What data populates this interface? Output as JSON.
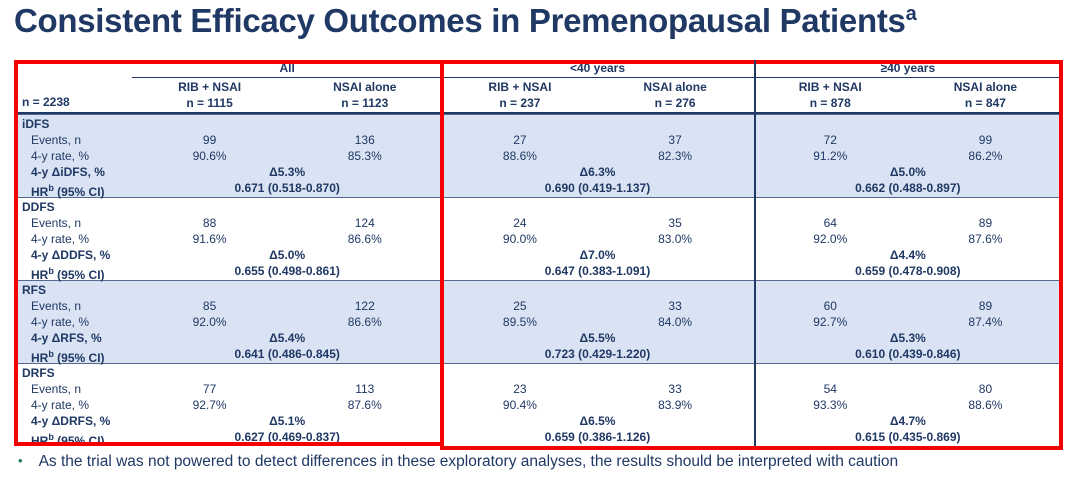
{
  "title": {
    "text": "Consistent Efficacy Outcomes in Premenopausal Patients",
    "superscript": "a"
  },
  "colors": {
    "navy": "#1f3864",
    "row_shade": "#dae3f3",
    "highlight_red": "#f40000",
    "bullet_green": "#1e7a5a"
  },
  "table": {
    "n_label": "n = 2238",
    "groups": [
      {
        "label": "All",
        "columns": [
          {
            "arm": "RIB + NSAI",
            "n": "n = 1115"
          },
          {
            "arm": "NSAI alone",
            "n": "n = 1123"
          }
        ]
      },
      {
        "label": "<40 years",
        "columns": [
          {
            "arm": "RIB + NSAI",
            "n": "n = 237"
          },
          {
            "arm": "NSAI alone",
            "n": "n = 276"
          }
        ]
      },
      {
        "label": "≥40 years",
        "columns": [
          {
            "arm": "RIB + NSAI",
            "n": "n = 878"
          },
          {
            "arm": "NSAI alone",
            "n": "n = 847"
          }
        ]
      }
    ],
    "sections": [
      {
        "name": "iDFS",
        "shaded": true,
        "rows": {
          "events": {
            "label": "Events, n",
            "values": [
              "99",
              "136",
              "27",
              "37",
              "72",
              "99"
            ]
          },
          "rate": {
            "label": "4-y rate, %",
            "values": [
              "90.6%",
              "85.3%",
              "88.6%",
              "82.3%",
              "91.2%",
              "86.2%"
            ]
          },
          "delta": {
            "label": "4-y ΔiDFS, %",
            "values": [
              "Δ5.3%",
              "Δ6.3%",
              "Δ5.0%"
            ]
          },
          "hr": {
            "label": {
              "base": "HR",
              "sup": "b",
              "rest": " (95% CI)"
            },
            "values": [
              "0.671 (0.518-0.870)",
              "0.690 (0.419-1.137)",
              "0.662 (0.488-0.897)"
            ]
          }
        }
      },
      {
        "name": "DDFS",
        "shaded": false,
        "rows": {
          "events": {
            "label": "Events, n",
            "values": [
              "88",
              "124",
              "24",
              "35",
              "64",
              "89"
            ]
          },
          "rate": {
            "label": "4-y rate, %",
            "values": [
              "91.6%",
              "86.6%",
              "90.0%",
              "83.0%",
              "92.0%",
              "87.6%"
            ]
          },
          "delta": {
            "label": "4-y ΔDDFS, %",
            "values": [
              "Δ5.0%",
              "Δ7.0%",
              "Δ4.4%"
            ]
          },
          "hr": {
            "label": {
              "base": "HR",
              "sup": "b",
              "rest": " (95% CI)"
            },
            "values": [
              "0.655 (0.498-0.861)",
              "0.647 (0.383-1.091)",
              "0.659 (0.478-0.908)"
            ]
          }
        }
      },
      {
        "name": "RFS",
        "shaded": true,
        "rows": {
          "events": {
            "label": "Events, n",
            "values": [
              "85",
              "122",
              "25",
              "33",
              "60",
              "89"
            ]
          },
          "rate": {
            "label": "4-y rate, %",
            "values": [
              "92.0%",
              "86.6%",
              "89.5%",
              "84.0%",
              "92.7%",
              "87.4%"
            ]
          },
          "delta": {
            "label": "4-y ΔRFS, %",
            "values": [
              "Δ5.4%",
              "Δ5.5%",
              "Δ5.3%"
            ]
          },
          "hr": {
            "label": {
              "base": "HR",
              "sup": "b",
              "rest": " (95% CI)"
            },
            "values": [
              "0.641 (0.486-0.845)",
              "0.723 (0.429-1.220)",
              "0.610 (0.439-0.846)"
            ]
          }
        }
      },
      {
        "name": "DRFS",
        "shaded": false,
        "rows": {
          "events": {
            "label": "Events, n",
            "values": [
              "77",
              "113",
              "23",
              "33",
              "54",
              "80"
            ]
          },
          "rate": {
            "label": "4-y rate, %",
            "values": [
              "92.7%",
              "87.6%",
              "90.4%",
              "83.9%",
              "93.3%",
              "88.6%"
            ]
          },
          "delta": {
            "label": "4-y ΔDRFS, %",
            "values": [
              "Δ5.1%",
              "Δ6.5%",
              "Δ4.7%"
            ]
          },
          "hr": {
            "label": {
              "base": "HR",
              "sup": "b",
              "rest": " (95% CI)"
            },
            "values": [
              "0.627 (0.469-0.837)",
              "0.659 (0.386-1.126)",
              "0.615 (0.435-0.869)"
            ]
          }
        }
      }
    ]
  },
  "footnote": {
    "bullet": "•",
    "text": "As the trial was not powered to detect differences in these exploratory analyses, the results should be interpreted with caution"
  }
}
